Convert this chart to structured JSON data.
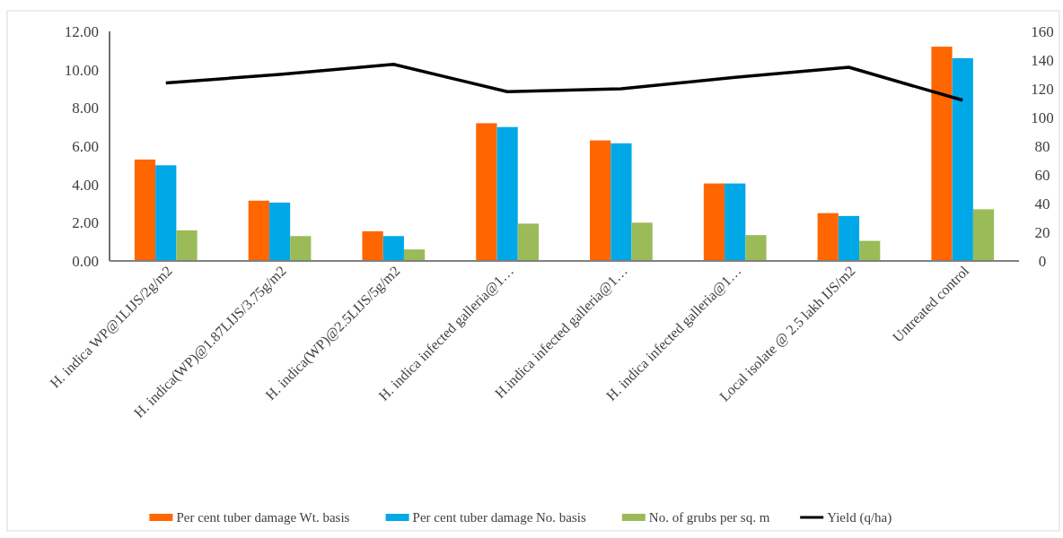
{
  "chart_data": {
    "type": "bar",
    "categories": [
      "H. indica WP@1LIJS/2g/m2",
      "H. indica(WP)@1.87LIJS/3.75g/m2",
      "H. indica(WP)@2.5LIJS/5g/m2",
      "H. indica infected galleria@1…",
      "H.indica infected galleria@1…",
      "H. indica infected galleria@1…",
      "Local isolate @ 2.5 lakh IJS/m2",
      "Untreated control"
    ],
    "series": [
      {
        "name": "Per cent tuber damage Wt. basis",
        "color": "#ff6600",
        "values": [
          5.3,
          3.15,
          1.55,
          7.2,
          6.3,
          4.05,
          2.5,
          11.2
        ]
      },
      {
        "name": "Per cent tuber damage No. basis",
        "color": "#00a8e8",
        "values": [
          5.0,
          3.05,
          1.3,
          7.0,
          6.15,
          4.05,
          2.35,
          10.6
        ]
      },
      {
        "name": "No. of grubs per sq. m",
        "color": "#9bbb59",
        "values": [
          1.6,
          1.3,
          0.6,
          1.95,
          2.0,
          1.35,
          1.05,
          2.7
        ]
      },
      {
        "name": "Yield (q/ha)",
        "type": "line",
        "axis": "y2",
        "color": "#000000",
        "values": [
          124,
          130,
          137,
          118,
          120,
          128,
          135,
          112
        ]
      }
    ],
    "ylim": [
      0,
      12
    ],
    "yticks": [
      {
        "value": 0,
        "label": "0.00"
      },
      {
        "value": 2,
        "label": "2.00"
      },
      {
        "value": 4,
        "label": "4.00"
      },
      {
        "value": 6,
        "label": "6.00"
      },
      {
        "value": 8,
        "label": "8.00"
      },
      {
        "value": 10,
        "label": "10.00"
      },
      {
        "value": 12,
        "label": "12.00"
      }
    ],
    "y2lim": [
      0,
      160
    ],
    "y2ticks": [
      0,
      20,
      40,
      60,
      80,
      100,
      120,
      140,
      160
    ],
    "legend": "bottom",
    "grid": false,
    "marker": "none"
  }
}
